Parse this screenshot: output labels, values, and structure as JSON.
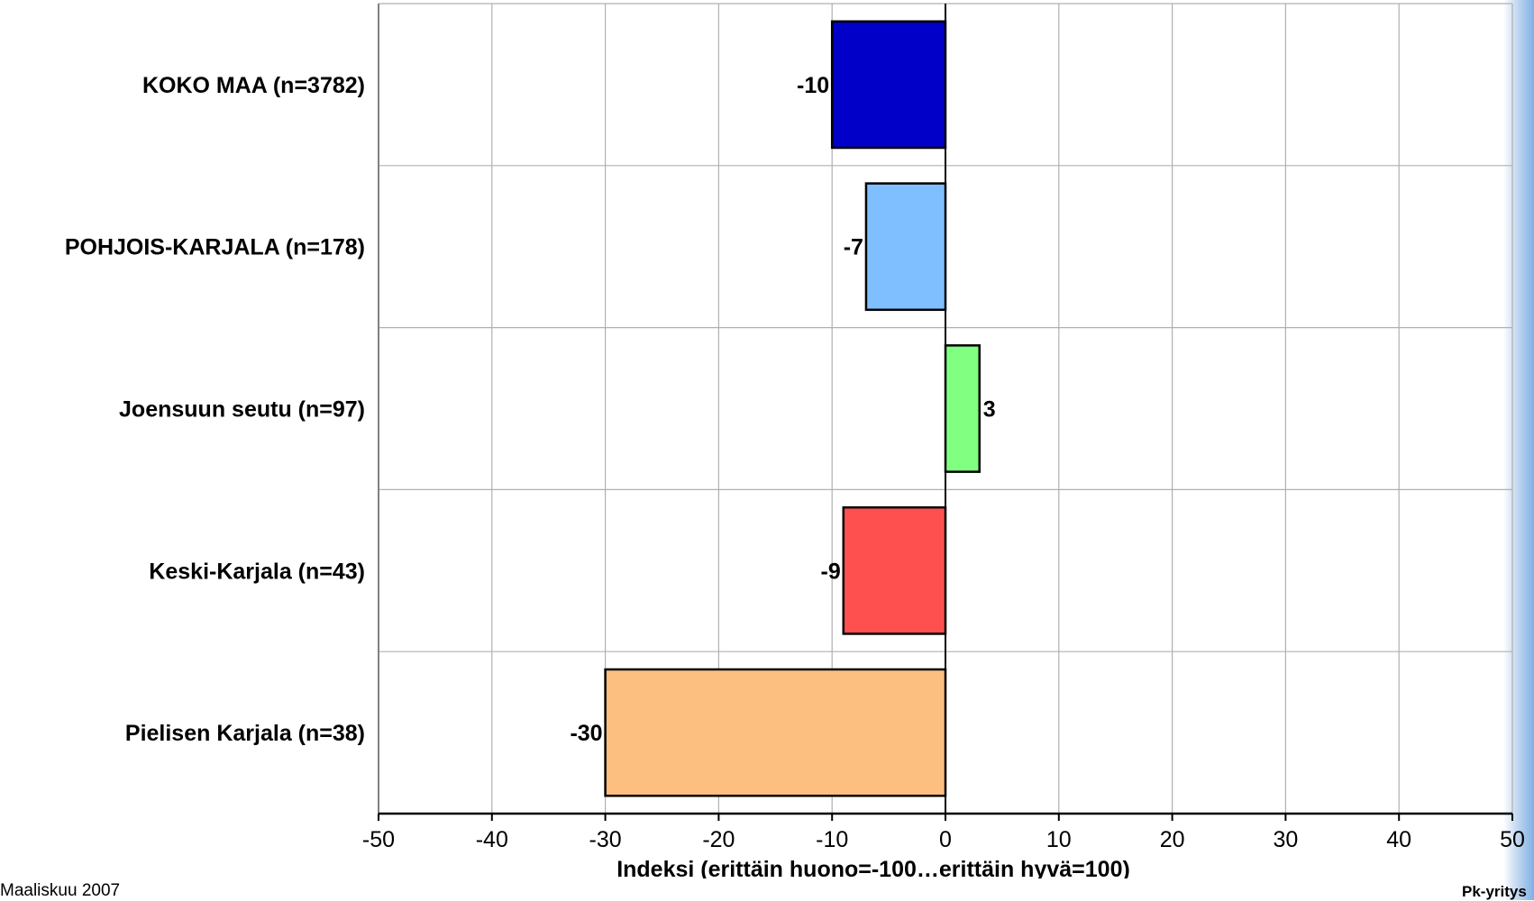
{
  "chart_data": {
    "type": "bar",
    "orientation": "horizontal",
    "categories": [
      "KOKO MAA (n=3782)",
      "POHJOIS-KARJALA (n=178)",
      "Joensuun seutu (n=97)",
      "Keski-Karjala (n=43)",
      "Pielisen Karjala (n=38)"
    ],
    "values": [
      -10,
      -7,
      3,
      -9,
      -30
    ],
    "value_labels": [
      "-10",
      "-7",
      "3",
      "-9",
      "-30"
    ],
    "colors": [
      "#0000c8",
      "#80bfff",
      "#80ff80",
      "#ff5050",
      "#fcbf80"
    ],
    "xlabel": "Indeksi (erittäin huono=-100…erittäin hyvä=100)",
    "xlim": [
      -50,
      50
    ],
    "xticks": [
      -50,
      -40,
      -30,
      -20,
      -10,
      0,
      10,
      20,
      30,
      40,
      50
    ],
    "tick_labels": [
      "-50",
      "-40",
      "-30",
      "-20",
      "-10",
      "0",
      "10",
      "20",
      "30",
      "40",
      "50"
    ],
    "grid": true,
    "legend": "none"
  },
  "footer": {
    "left": "Maaliskuu 2007",
    "right": "Pk-yritys"
  },
  "colors": {
    "accent_strip": "#7fb1e4"
  }
}
